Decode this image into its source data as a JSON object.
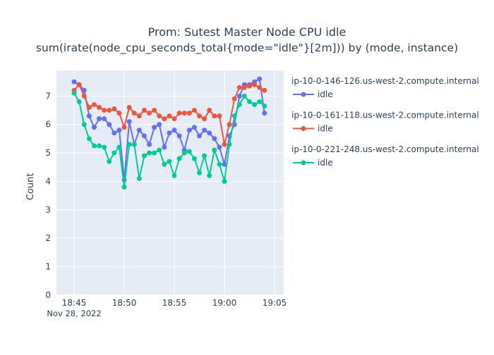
{
  "chart_data": {
    "type": "line",
    "title": "Prom: Sutest Master Node CPU idle",
    "subtitle": "sum(irate(node_cpu_seconds_total{mode=\"idle\"}[2m])) by (mode, instance)",
    "xlabel": "",
    "ylabel": "Count",
    "x_start": "2022-11-28 18:45:00",
    "x_step_seconds": 30,
    "xlim": [
      "2022-11-28 18:43:14",
      "2022-11-28 19:05:55"
    ],
    "ylim": [
      0,
      7.9
    ],
    "x_ticks": [
      "18:45",
      "18:50",
      "18:55",
      "19:00",
      "19:05"
    ],
    "x_tick_minutes": [
      45,
      50,
      55,
      60,
      65
    ],
    "x_date_label": "Nov 28, 2022",
    "y_ticks": [
      "0",
      "1",
      "2",
      "3",
      "4",
      "5",
      "6",
      "7"
    ],
    "grid": true,
    "legend_position": "right",
    "series": [
      {
        "group": "ip-10-0-146-126.us-west-2.compute.internal",
        "name": "idle",
        "color": "#636efa",
        "values": [
          7.5,
          7.4,
          7.2,
          6.3,
          5.9,
          6.2,
          6.2,
          6.0,
          5.7,
          5.8,
          4.05,
          6.1,
          5.3,
          5.8,
          5.6,
          5.3,
          5.9,
          6.0,
          5.2,
          5.7,
          5.8,
          5.6,
          5.1,
          5.8,
          5.9,
          5.6,
          5.8,
          5.7,
          5.5,
          5.2,
          4.6,
          5.6,
          6.0,
          7.0,
          7.4,
          7.4,
          7.5,
          7.6,
          6.4
        ]
      },
      {
        "group": "ip-10-0-161-118.us-west-2.compute.internal",
        "name": "idle",
        "color": "#EF553B",
        "values": [
          7.2,
          7.4,
          7.0,
          6.6,
          6.7,
          6.6,
          6.5,
          6.5,
          6.55,
          6.4,
          5.9,
          6.6,
          6.4,
          6.3,
          6.5,
          6.4,
          6.5,
          6.3,
          6.2,
          6.3,
          6.2,
          6.4,
          6.4,
          6.4,
          6.5,
          6.3,
          6.2,
          6.5,
          6.3,
          6.3,
          5.3,
          6.0,
          6.9,
          7.3,
          7.3,
          7.35,
          7.4,
          7.3,
          7.2
        ]
      },
      {
        "group": "ip-10-0-221-248.us-west-2.compute.internal",
        "name": "idle",
        "color": "#00cc96",
        "values": [
          7.1,
          6.8,
          6.0,
          5.5,
          5.25,
          5.25,
          5.2,
          4.7,
          5.0,
          5.2,
          3.8,
          5.3,
          5.3,
          4.1,
          4.9,
          5.0,
          5.0,
          5.1,
          4.6,
          4.7,
          4.2,
          4.8,
          5.0,
          5.05,
          4.8,
          4.3,
          4.9,
          4.2,
          5.1,
          4.6,
          4.0,
          5.3,
          6.3,
          6.7,
          7.0,
          6.8,
          6.7,
          6.8,
          6.65
        ]
      }
    ],
    "plot_bg": "#E5ECF6"
  }
}
